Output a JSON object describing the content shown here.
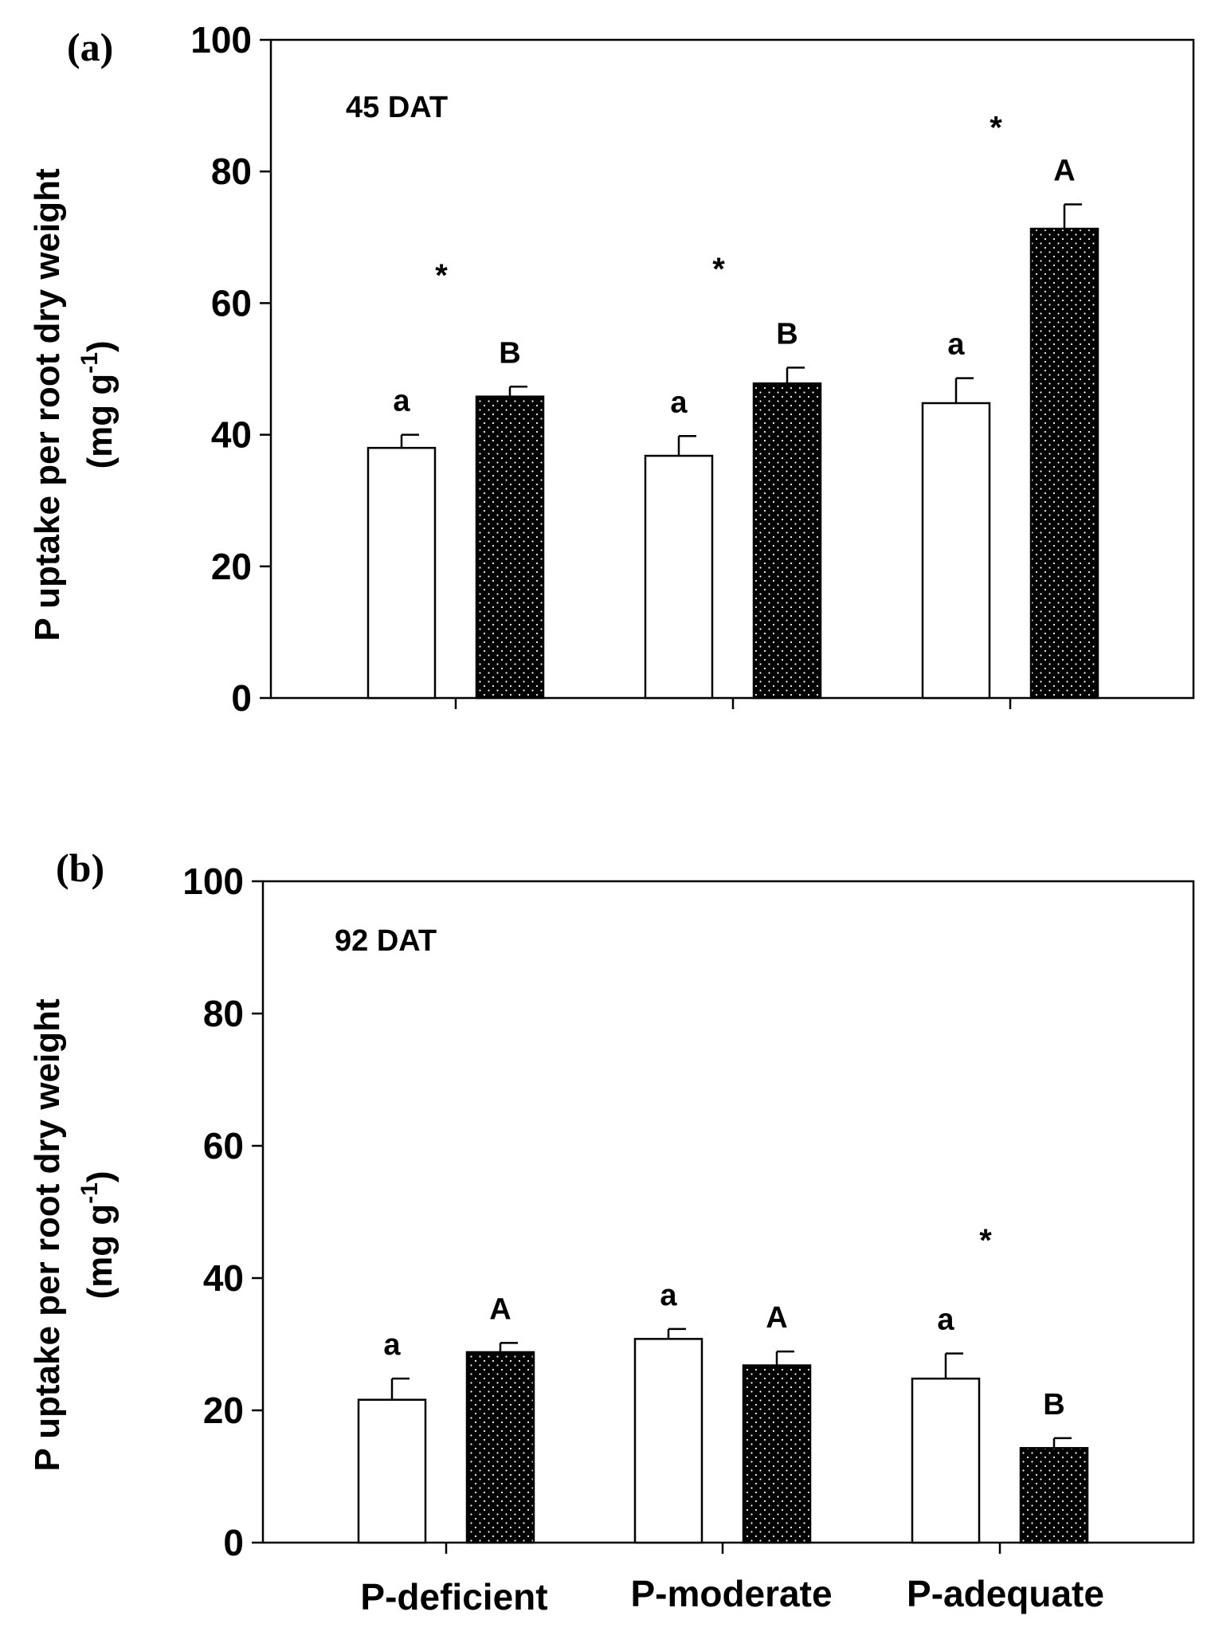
{
  "chart_data": [
    {
      "type": "bar",
      "panel_label": "(a)",
      "annotation": "45 DAT",
      "ylabel_line1": "P uptake per root dry weight",
      "ylabel_line2_prefix": "(mg g",
      "ylabel_line2_sup": "-1",
      "ylabel_line2_suffix": ")",
      "ylim": [
        0,
        100
      ],
      "yticks": [
        "0",
        "20",
        "40",
        "60",
        "80",
        "100"
      ],
      "categories": [
        "P-deficient",
        "P-moderate",
        "P-adequate"
      ],
      "series": [
        {
          "name": "open bar",
          "fill": "#ffffff",
          "values": [
            38,
            36.8,
            44.8
          ],
          "errors": [
            2,
            3,
            3.8
          ],
          "letters": [
            "a",
            "a",
            "a"
          ]
        },
        {
          "name": "dotted bar",
          "fill": "#000000",
          "values": [
            45.8,
            47.8,
            71.3
          ],
          "errors": [
            1.5,
            2.4,
            3.7
          ],
          "letters": [
            "B",
            "B",
            "A"
          ]
        }
      ],
      "significance": [
        "*",
        "*",
        "*"
      ],
      "significance_y": [
        65,
        66,
        87.5
      ]
    },
    {
      "type": "bar",
      "panel_label": "(b)",
      "annotation": "92 DAT",
      "ylabel_line1": "P uptake per root dry weight",
      "ylabel_line2_prefix": "(mg g",
      "ylabel_line2_sup": "-1",
      "ylabel_line2_suffix": ")",
      "ylim": [
        0,
        100
      ],
      "yticks": [
        "0",
        "20",
        "40",
        "60",
        "80",
        "100"
      ],
      "categories": [
        "P-deficient",
        "P-moderate",
        "P-adequate"
      ],
      "series": [
        {
          "name": "open bar",
          "fill": "#ffffff",
          "values": [
            21.6,
            30.8,
            24.8
          ],
          "errors": [
            3.2,
            1.5,
            3.8
          ],
          "letters": [
            "a",
            "a",
            "a"
          ]
        },
        {
          "name": "dotted bar",
          "fill": "#000000",
          "values": [
            28.8,
            26.8,
            14.3
          ],
          "errors": [
            1.4,
            2.1,
            1.5
          ],
          "letters": [
            "A",
            "A",
            "B"
          ]
        }
      ],
      "significance": [
        "",
        "",
        "*"
      ],
      "significance_y": [
        null,
        null,
        46.5
      ]
    }
  ],
  "x_category_labels": [
    "P-deficient",
    "P-moderate",
    "P-adequate"
  ]
}
